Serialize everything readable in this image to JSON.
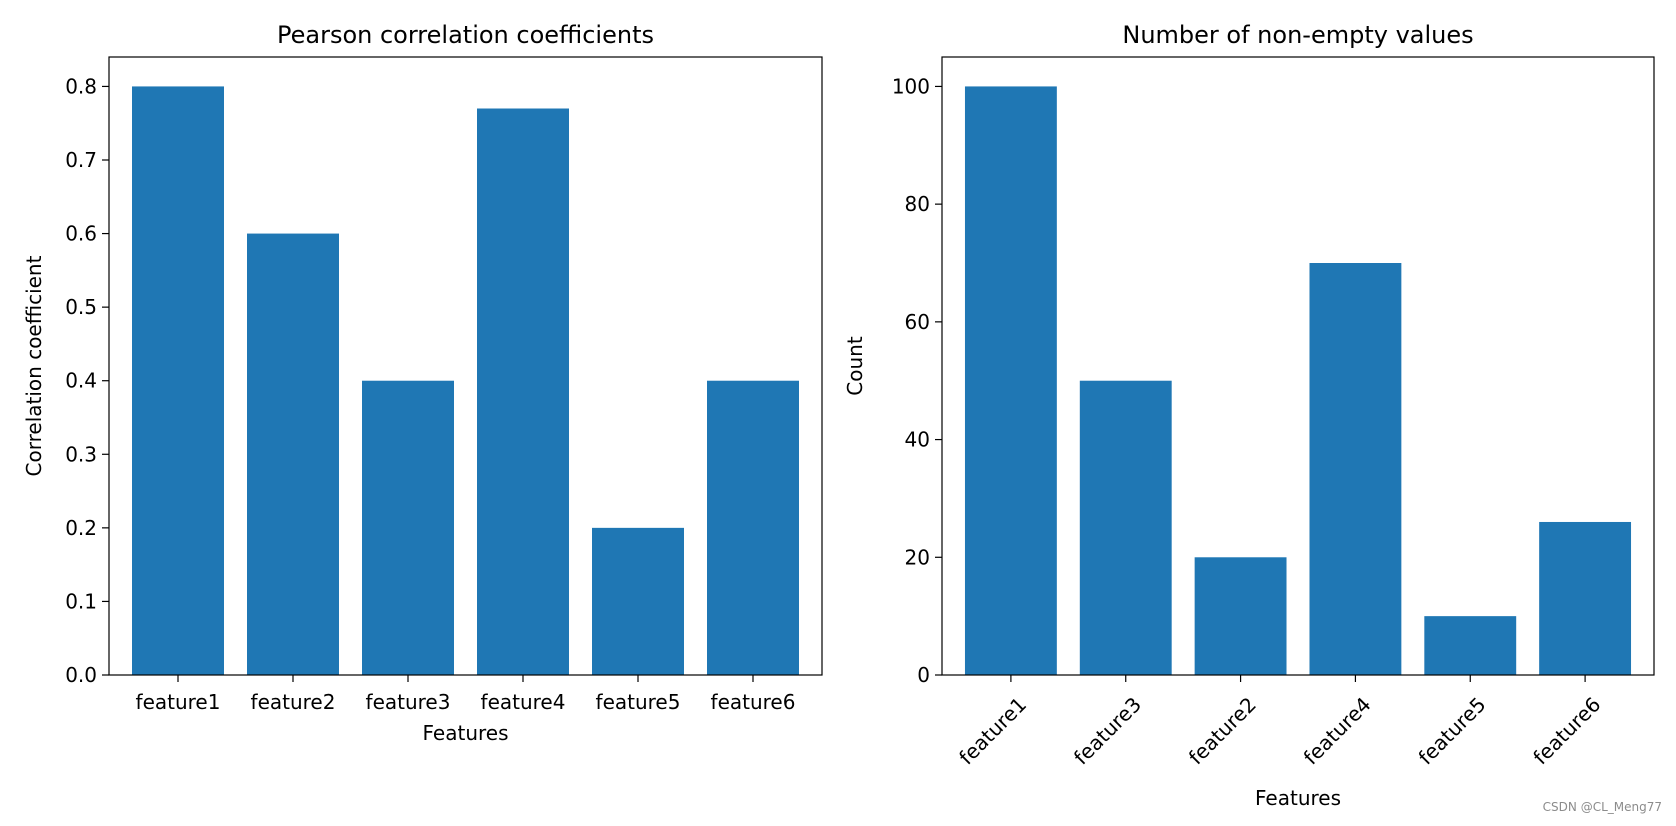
{
  "bar_color": "#1f77b4",
  "watermark": "CSDN @CL_Meng77",
  "chart_data": [
    {
      "type": "bar",
      "title": "Pearson correlation coefficients",
      "xlabel": "Features",
      "ylabel": "Correlation coefficient",
      "categories": [
        "feature1",
        "feature2",
        "feature3",
        "feature4",
        "feature5",
        "feature6"
      ],
      "values": [
        0.8,
        0.6,
        0.4,
        0.77,
        0.2,
        0.4
      ],
      "ylim": [
        0,
        0.84
      ],
      "yticks": [
        "0.0",
        "0.1",
        "0.2",
        "0.3",
        "0.4",
        "0.5",
        "0.6",
        "0.7",
        "0.8"
      ],
      "x_tick_rotation": "none",
      "grid": false,
      "legend": "none"
    },
    {
      "type": "bar",
      "title": "Number of non-empty values",
      "xlabel": "Features",
      "ylabel": "Count",
      "categories": [
        "feature1",
        "feature3",
        "feature2",
        "feature4",
        "feature5",
        "feature6"
      ],
      "values": [
        100,
        50,
        20,
        70,
        10,
        26
      ],
      "ylim": [
        0,
        105
      ],
      "yticks": [
        "0",
        "20",
        "40",
        "60",
        "80",
        "100"
      ],
      "x_tick_rotation": "45",
      "grid": false,
      "legend": "none"
    }
  ]
}
